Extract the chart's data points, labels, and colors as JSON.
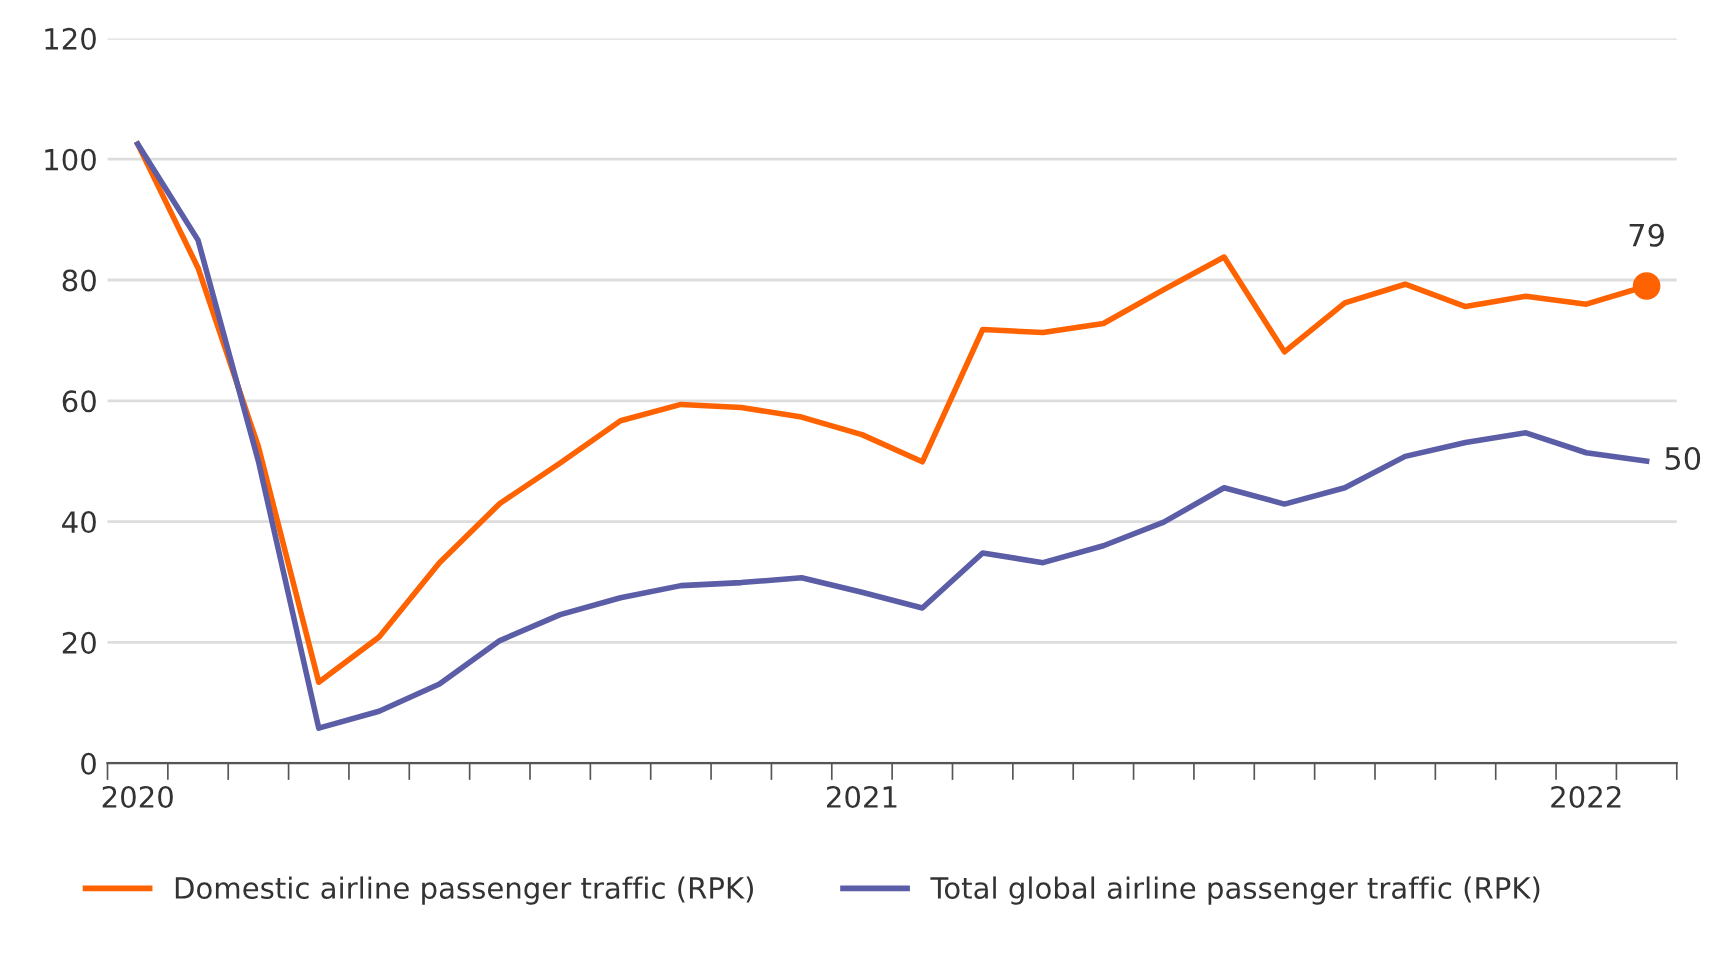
{
  "chart_data": {
    "type": "line",
    "categories": [
      "2020",
      null,
      null,
      null,
      null,
      null,
      null,
      null,
      null,
      null,
      null,
      null,
      "2021",
      null,
      null,
      null,
      null,
      null,
      null,
      null,
      null,
      null,
      null,
      null,
      "2022",
      null
    ],
    "series": [
      {
        "name": "Domestic airline passenger traffic (RPK)",
        "color": "#ff6200",
        "values": [
          102.5,
          82,
          52.4,
          13.4,
          20.9,
          33.2,
          43,
          49.7,
          56.7,
          59.4,
          58.9,
          57.3,
          54.4,
          49.9,
          71.8,
          71.3,
          72.8,
          78.4,
          83.8,
          68.1,
          76.2,
          79.3,
          75.6,
          77.3,
          76,
          79
        ]
      },
      {
        "type": "scatter",
        "color": "#ff6200",
        "marker": "circle",
        "values": [
          null,
          null,
          null,
          null,
          null,
          null,
          null,
          null,
          null,
          null,
          null,
          null,
          null,
          null,
          null,
          null,
          null,
          null,
          null,
          null,
          null,
          null,
          null,
          null,
          null,
          79
        ],
        "value_labels": [
          null,
          null,
          null,
          null,
          null,
          null,
          null,
          null,
          null,
          null,
          null,
          null,
          null,
          null,
          null,
          null,
          null,
          null,
          null,
          null,
          null,
          null,
          null,
          null,
          null,
          "79"
        ]
      },
      {
        "name": "Total global airline passenger traffic (RPK)",
        "color": "#5b5ea6",
        "values": [
          102.5,
          86.6,
          50,
          5.8,
          8.6,
          13.1,
          20.3,
          24.6,
          27.4,
          29.4,
          29.9,
          30.7,
          28.3,
          25.7,
          34.8,
          33.2,
          36,
          39.9,
          45.6,
          42.9,
          45.6,
          50.8,
          53.1,
          54.7,
          51.4,
          50
        ],
        "value_labels": [
          null,
          null,
          null,
          null,
          null,
          null,
          null,
          null,
          null,
          null,
          null,
          null,
          null,
          null,
          null,
          null,
          null,
          null,
          null,
          null,
          null,
          null,
          null,
          null,
          null,
          "50"
        ]
      }
    ],
    "ylim": [
      0,
      120
    ],
    "yticks": [
      0,
      20,
      40,
      60,
      80,
      100,
      120
    ],
    "grid": "y",
    "legend": "bottom",
    "line_style": "solid"
  }
}
